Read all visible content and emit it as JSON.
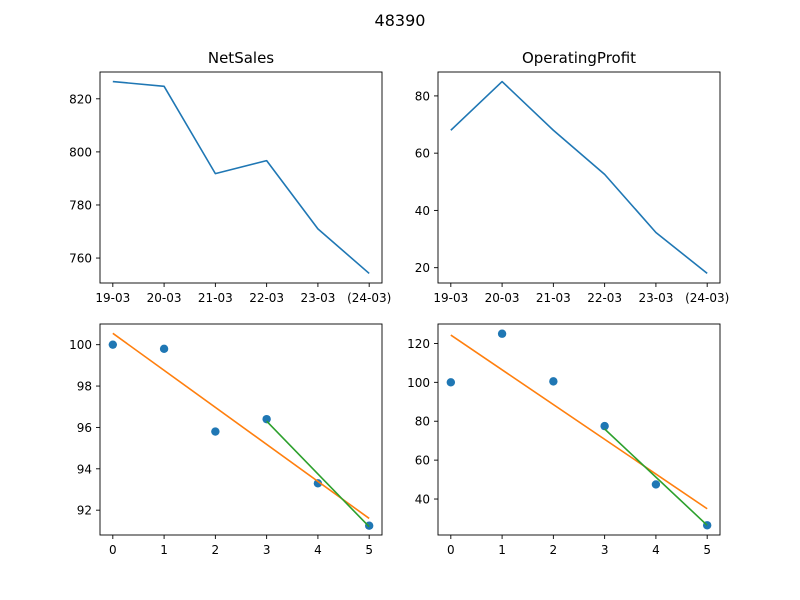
{
  "figure": {
    "title": "48390"
  },
  "chart_data": [
    {
      "type": "line",
      "title": "NetSales",
      "xlabel": "",
      "ylabel": "",
      "x": [
        "19-03",
        "20-03",
        "21-03",
        "22-03",
        "23-03",
        "(24-03)"
      ],
      "series": [
        {
          "values": [
            826.5,
            824.7,
            791.8,
            796.7,
            771.0,
            754.2
          ],
          "color": "#1f77b4"
        }
      ],
      "yticks": [
        760,
        780,
        800,
        820
      ],
      "ylim": [
        750.6,
        830.1
      ],
      "grid": false
    },
    {
      "type": "line",
      "title": "OperatingProfit",
      "xlabel": "",
      "ylabel": "",
      "x": [
        "19-03",
        "20-03",
        "21-03",
        "22-03",
        "23-03",
        "(24-03)"
      ],
      "series": [
        {
          "values": [
            68.0,
            85.0,
            68.0,
            52.6,
            32.3,
            18.0
          ],
          "color": "#1f77b4"
        }
      ],
      "yticks": [
        20,
        40,
        60,
        80
      ],
      "ylim": [
        14.65,
        88.35
      ],
      "grid": false
    },
    {
      "type": "scatter",
      "title": "",
      "xlabel": "",
      "ylabel": "",
      "x": [
        0,
        1,
        2,
        3,
        4,
        5
      ],
      "series": [
        {
          "kind": "points",
          "values": [
            100.0,
            99.8,
            95.8,
            96.4,
            93.3,
            91.25
          ],
          "color": "#1f77b4"
        },
        {
          "kind": "line",
          "x": [
            0,
            5
          ],
          "values": [
            100.55,
            91.6
          ],
          "color": "#ff7f0e"
        },
        {
          "kind": "line",
          "x": [
            3,
            5
          ],
          "values": [
            96.3,
            91.2
          ],
          "color": "#2ca02c"
        }
      ],
      "xticks": [
        0,
        1,
        2,
        3,
        4,
        5
      ],
      "yticks": [
        92,
        94,
        96,
        98,
        100
      ],
      "xlim": [
        -0.25,
        5.25
      ],
      "ylim": [
        90.8,
        101.0
      ],
      "grid": false
    },
    {
      "type": "scatter",
      "title": "",
      "xlabel": "",
      "ylabel": "",
      "x": [
        0,
        1,
        2,
        3,
        4,
        5
      ],
      "series": [
        {
          "kind": "points",
          "values": [
            100.0,
            125.0,
            100.5,
            77.5,
            47.5,
            26.5
          ],
          "color": "#1f77b4"
        },
        {
          "kind": "line",
          "x": [
            0,
            5
          ],
          "values": [
            124.3,
            35.0
          ],
          "color": "#ff7f0e"
        },
        {
          "kind": "line",
          "x": [
            3,
            5
          ],
          "values": [
            76.0,
            26.5
          ],
          "color": "#2ca02c"
        }
      ],
      "xticks": [
        0,
        1,
        2,
        3,
        4,
        5
      ],
      "yticks": [
        40,
        60,
        80,
        100,
        120
      ],
      "xlim": [
        -0.25,
        5.25
      ],
      "ylim": [
        21.5,
        130.0
      ],
      "grid": false
    }
  ]
}
